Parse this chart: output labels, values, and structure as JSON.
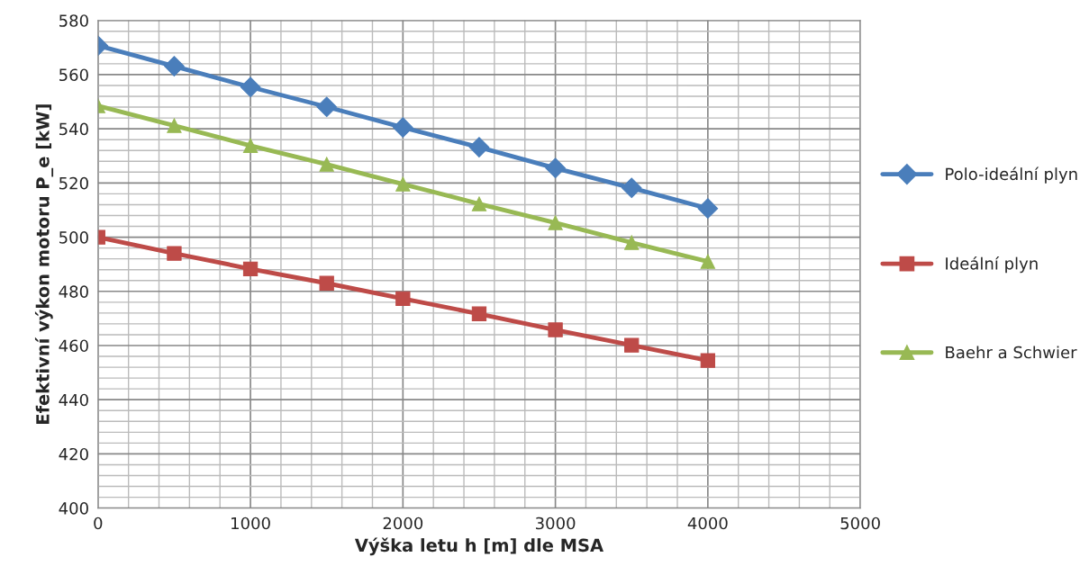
{
  "chart_data": {
    "type": "line",
    "xlabel": "Výška letu h [m] dle MSA",
    "ylabel": "Efektivní výkon motoru P_e [kW]",
    "x": [
      0,
      500,
      1000,
      1500,
      2000,
      2500,
      3000,
      3500,
      4000
    ],
    "series": [
      {
        "name": "Polo-ideální plyn",
        "color": "#4a7ebb",
        "marker": "diamond",
        "values": [
          570.7,
          563.1,
          555.4,
          548.1,
          540.5,
          533.2,
          525.5,
          518.2,
          510.6
        ]
      },
      {
        "name": "Ideální plyn",
        "color": "#be4b48",
        "marker": "square",
        "values": [
          500.0,
          494.0,
          488.3,
          483.0,
          477.3,
          471.7,
          465.8,
          460.1,
          454.5
        ]
      },
      {
        "name": "Baehr a Schwier",
        "color": "#98b954",
        "marker": "triangle",
        "values": [
          548.5,
          541.2,
          533.8,
          526.9,
          519.6,
          512.3,
          505.3,
          498.0,
          491.0
        ]
      }
    ],
    "xlim": [
      0,
      5000
    ],
    "xticks": [
      0,
      1000,
      2000,
      3000,
      4000,
      5000
    ],
    "ylim": [
      400,
      580
    ],
    "yticks": [
      400,
      420,
      440,
      460,
      480,
      500,
      520,
      540,
      560,
      580
    ],
    "grid": true,
    "legend": "right"
  }
}
